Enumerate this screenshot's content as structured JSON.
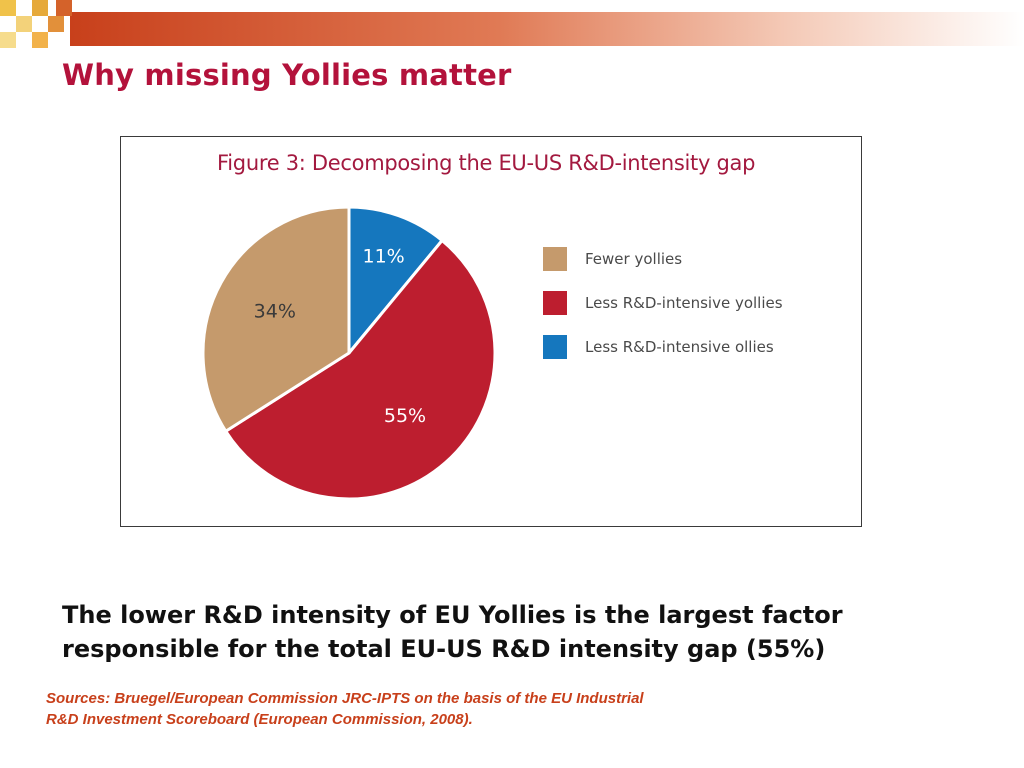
{
  "slide": {
    "title": "Why missing Yollies matter",
    "conclusion": "The lower R&D intensity of EU Yollies is the largest factor responsible for the total EU-US R&D intensity gap (55%)",
    "sources": [
      "Sources: Bruegel/European Commission JRC-IPTS on the basis of the EU Industrial",
      "R&D Investment Scoreboard (European Commission, 2008)."
    ]
  },
  "colors": {
    "title": "#b3123b",
    "figure_title": "#a3193f",
    "sources": "#c8401b"
  },
  "chart_data": {
    "type": "pie",
    "title": "Figure 3: Decomposing the EU-US R&D-intensity gap",
    "slices": [
      {
        "label": "Less R&D-intensive ollies",
        "value": 11,
        "display": "11%",
        "color": "#1577be",
        "label_color": "#ffffff"
      },
      {
        "label": "Less R&D-intensive yollies",
        "value": 55,
        "display": "55%",
        "color": "#bd1e2f",
        "label_color": "#ffffff"
      },
      {
        "label": "Fewer yollies",
        "value": 34,
        "display": "34%",
        "color": "#c59a6c",
        "label_color": "#3a3a3a"
      }
    ],
    "legend": [
      {
        "label": "Fewer yollies",
        "color": "#c59a6c"
      },
      {
        "label": "Less R&D-intensive yollies",
        "color": "#bd1e2f"
      },
      {
        "label": "Less R&D-intensive ollies",
        "color": "#1577be"
      }
    ],
    "legend_position": "right",
    "start_angle": "12 o'clock, clockwise"
  }
}
